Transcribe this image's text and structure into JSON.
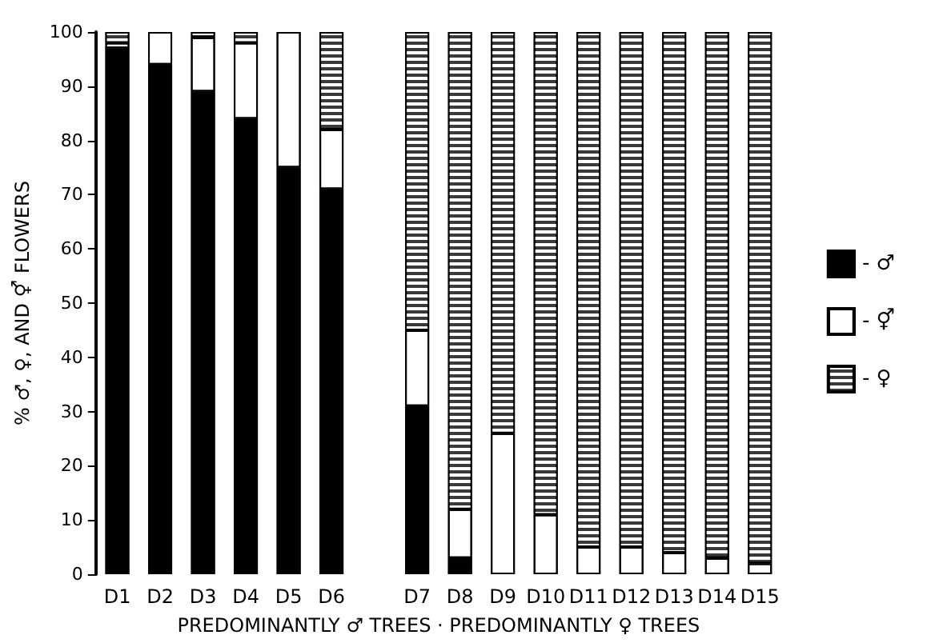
{
  "chart_data": {
    "type": "bar",
    "stacked": true,
    "xlabel": "PREDOMINANTLY ♂ TREES · PREDOMINANTLY ♀ TREES",
    "ylabel": "% ♂, ♀, AND ⚥ FLOWERS",
    "categories": [
      "D1",
      "D2",
      "D3",
      "D4",
      "D5",
      "D6",
      null,
      "D7",
      "D8",
      "D9",
      "D10",
      "D11",
      "D12",
      "D13",
      "D14",
      "D15"
    ],
    "series": [
      {
        "name": "- ♂",
        "color": "#000000",
        "values": [
          97,
          94,
          89,
          84,
          75,
          71,
          null,
          31,
          3,
          0,
          0,
          0,
          0,
          0,
          0,
          0
        ]
      },
      {
        "name": "- ⚥",
        "color": "#ffffff",
        "values": [
          1,
          6,
          10,
          14,
          25,
          11,
          null,
          14,
          9,
          26,
          11,
          5,
          5,
          4,
          3,
          2
        ]
      },
      {
        "name": "- ♀",
        "color": "#3a3a3a",
        "values": [
          2,
          0,
          1,
          2,
          0,
          18,
          null,
          55,
          88,
          74,
          89,
          95,
          95,
          96,
          97,
          98
        ]
      }
    ],
    "ylim": [
      0,
      100
    ],
    "yticks": [
      0,
      10,
      20,
      30,
      40,
      50,
      60,
      70,
      80,
      90,
      100
    ],
    "grid": false,
    "legend": "right"
  }
}
